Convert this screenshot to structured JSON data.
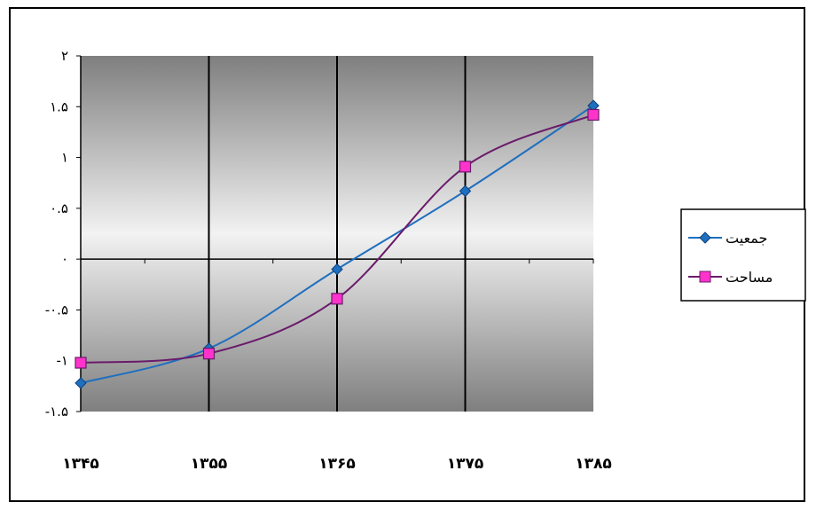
{
  "chart_data": {
    "type": "line",
    "x": [
      "۱۳۴۵",
      "۱۳۵۵",
      "۱۳۶۵",
      "۱۳۷۵",
      "۱۳۸۵"
    ],
    "y_ticks": [
      "۲",
      "۱.۵",
      "۱",
      "۰.۵",
      "۰",
      "-۰.۵",
      "-۱",
      "-۱.۵"
    ],
    "y_tick_values": [
      2,
      1.5,
      1,
      0.5,
      0,
      -0.5,
      -1,
      -1.5
    ],
    "ylim": [
      -1.5,
      2
    ],
    "grid": "vertical",
    "legend_position": "right",
    "series": [
      {
        "name": "جمعیت",
        "values": [
          -1.22,
          -0.88,
          -0.1,
          0.67,
          1.51
        ],
        "color": "#1f6fbf",
        "marker": "diamond"
      },
      {
        "name": "مساحت",
        "values": [
          -1.02,
          -0.93,
          -0.39,
          0.91,
          1.42
        ],
        "color": "#6a1b6a",
        "marker": "square",
        "marker_fill": "#ff33cc"
      }
    ],
    "background": {
      "top": "#7f7f7f",
      "middle": "#f2f2f2",
      "bottom": "#7f7f7f"
    }
  }
}
